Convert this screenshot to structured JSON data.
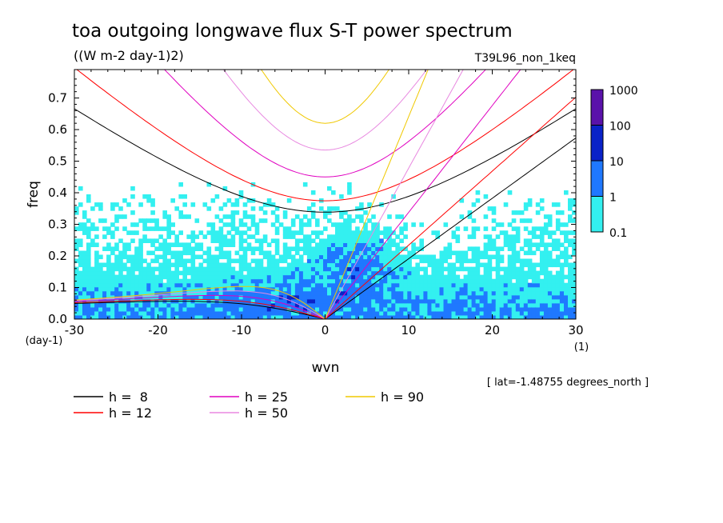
{
  "chart_data": {
    "type": "heatmap",
    "title": "toa outgoing longwave flux S-T power spectrum",
    "subtitle": "((W m-2 day-1)2)",
    "experiment": "T39L96_non_1keq",
    "xlabel": "wvn",
    "ylabel": "freq",
    "xunits": "(1)",
    "yunits": "(day-1)",
    "xlim": [
      -30,
      30
    ],
    "ylim": [
      0,
      0.79
    ],
    "xticks": [
      -30,
      -20,
      -10,
      0,
      10,
      20,
      30
    ],
    "xtick_labels": [
      "-30",
      "-20",
      "-10",
      "0",
      "10",
      "20",
      "30"
    ],
    "yticks": [
      0.0,
      0.1,
      0.2,
      0.3,
      0.4,
      0.5,
      0.6,
      0.7
    ],
    "ytick_labels": [
      "0.0",
      "0.1",
      "0.2",
      "0.3",
      "0.4",
      "0.5",
      "0.6",
      "0.7"
    ],
    "colorbar": {
      "levels": [
        0.1,
        1,
        10,
        100,
        1000
      ],
      "labels": [
        "0.1",
        "1",
        "10",
        "100",
        "1000"
      ],
      "colors": [
        "#33f0f0",
        "#1f78ff",
        "#0a22c8",
        "#5a12aa"
      ]
    },
    "dispersion_curves": [
      {
        "label": "h =  8",
        "h": 8,
        "color": "#000000"
      },
      {
        "label": "h = 12",
        "h": 12,
        "color": "#ff0000"
      },
      {
        "label": "h = 25",
        "h": 25,
        "color": "#e000c0"
      },
      {
        "label": "h = 50",
        "h": 50,
        "color": "#e888e0"
      },
      {
        "label": "h = 90",
        "h": 90,
        "color": "#f0c800"
      }
    ],
    "annotation": "[ lat=-1.48755 degrees_north ]"
  }
}
